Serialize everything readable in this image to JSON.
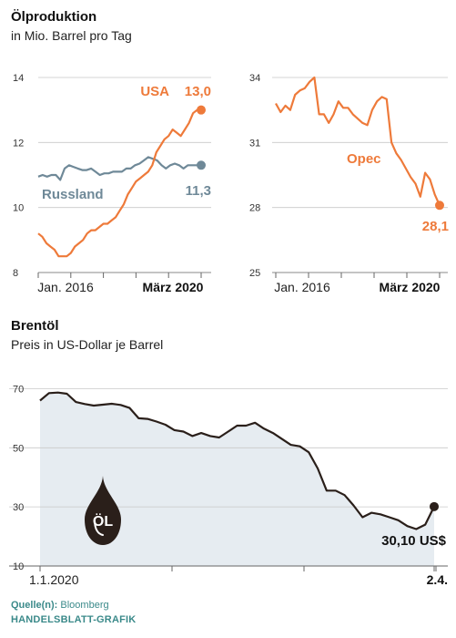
{
  "section1": {
    "title": "Ölproduktion",
    "subtitle": "in Mio. Barrel pro Tag"
  },
  "section2": {
    "title": "Brentöl",
    "subtitle": "Preis in US-Dollar je Barrel"
  },
  "footer": {
    "source_label": "Quelle(n):",
    "source_value": "Bloomberg",
    "credit": "HANDELSBLATT-GRAFIK"
  },
  "colors": {
    "orange": "#ee7a3a",
    "slate": "#6f8998",
    "dark": "#2a1f1a",
    "area": "#e6ecf1",
    "grid": "#c8c8c8"
  },
  "logo": {
    "text": "ÖL",
    "icon": "oil-drop-icon"
  },
  "chart_data": [
    {
      "type": "line",
      "yticks": [
        8,
        10,
        12,
        14
      ],
      "ylim": [
        8,
        14
      ],
      "xticks": [
        "Jan. 2016",
        "März 2020"
      ],
      "series": [
        {
          "name": "USA",
          "last_label": "13,0",
          "values": [
            9.2,
            9.1,
            8.9,
            8.8,
            8.7,
            8.5,
            8.5,
            8.5,
            8.6,
            8.8,
            8.9,
            9.0,
            9.2,
            9.3,
            9.3,
            9.4,
            9.5,
            9.5,
            9.6,
            9.7,
            9.9,
            10.1,
            10.4,
            10.6,
            10.8,
            10.9,
            11.0,
            11.1,
            11.3,
            11.7,
            11.9,
            12.1,
            12.2,
            12.4,
            12.3,
            12.2,
            12.4,
            12.6,
            12.9,
            13.0,
            13.0
          ]
        },
        {
          "name": "Russland",
          "last_label": "11,3",
          "values": [
            10.95,
            11.0,
            10.95,
            11.0,
            11.0,
            10.85,
            11.2,
            11.3,
            11.25,
            11.2,
            11.15,
            11.15,
            11.2,
            11.1,
            11.0,
            11.05,
            11.05,
            11.1,
            11.1,
            11.1,
            11.2,
            11.2,
            11.3,
            11.35,
            11.45,
            11.55,
            11.5,
            11.45,
            11.3,
            11.2,
            11.3,
            11.35,
            11.3,
            11.2,
            11.3,
            11.3,
            11.3,
            11.3
          ]
        }
      ]
    },
    {
      "type": "line",
      "yticks": [
        25,
        28,
        31,
        34
      ],
      "ylim": [
        25,
        34
      ],
      "xticks": [
        "Jan. 2016",
        "März 2020"
      ],
      "series": [
        {
          "name": "Opec",
          "last_label": "28,1",
          "values": [
            32.8,
            32.4,
            32.7,
            32.5,
            33.2,
            33.4,
            33.5,
            33.8,
            34.0,
            32.3,
            32.3,
            31.9,
            32.3,
            32.9,
            32.6,
            32.6,
            32.3,
            32.1,
            31.9,
            31.8,
            32.5,
            32.9,
            33.1,
            33.0,
            31.0,
            30.5,
            30.2,
            29.8,
            29.4,
            29.1,
            28.5,
            29.6,
            29.3,
            28.6,
            28.1
          ]
        }
      ]
    },
    {
      "type": "area",
      "yticks": [
        10,
        30,
        50,
        70
      ],
      "ylim": [
        10,
        72
      ],
      "xticks": [
        "1.1.2020",
        "2.4."
      ],
      "last_label": "30,10 US$",
      "values": [
        66.0,
        68.5,
        68.7,
        68.3,
        65.5,
        64.8,
        64.3,
        64.6,
        64.9,
        64.5,
        63.5,
        60.0,
        59.8,
        58.9,
        57.8,
        56.0,
        55.5,
        54.0,
        55.0,
        54.0,
        53.5,
        55.5,
        57.5,
        57.5,
        58.5,
        56.5,
        55.0,
        53.0,
        51.0,
        50.5,
        48.5,
        43.0,
        35.5,
        35.5,
        34.0,
        30.5,
        26.5,
        28.0,
        27.5,
        26.5,
        25.5,
        23.5,
        22.5,
        24.0,
        30.1
      ]
    }
  ]
}
